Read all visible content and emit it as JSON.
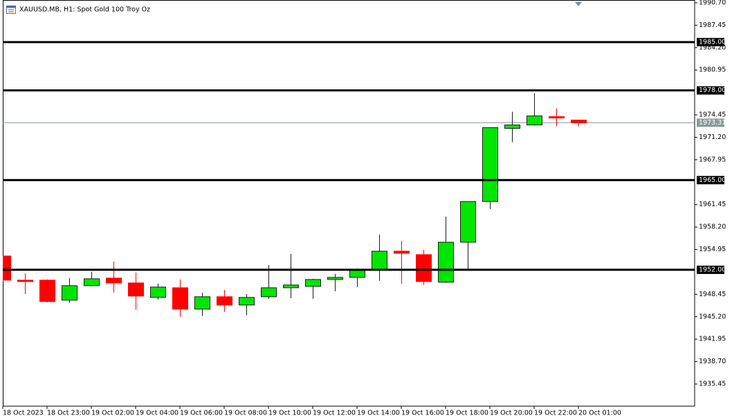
{
  "chart_data": {
    "type": "candlestick",
    "title": "XAUUSD.MB, H1:  Spot Gold 100 Troy Oz",
    "categories": [
      "18 Oct 2023",
      null,
      "18 Oct 23:00",
      null,
      "19 Oct 02:00",
      null,
      "19 Oct 04:00",
      null,
      "19 Oct 06:00",
      null,
      "19 Oct 08:00",
      null,
      "19 Oct 10:00",
      null,
      "19 Oct 12:00",
      null,
      "19 Oct 14:00",
      null,
      "19 Oct 16:00",
      null,
      "19 Oct 18:00",
      null,
      "19 Oct 20:00",
      null,
      "19 Oct 22:00",
      null,
      "20 Oct 01:00"
    ],
    "open": [
      1954.0,
      1950.5,
      1950.5,
      1947.6,
      1949.7,
      1950.8,
      1950.1,
      1948.0,
      1949.4,
      1946.3,
      1948.1,
      1946.9,
      1948.1,
      1949.4,
      1949.6,
      1950.6,
      1950.9,
      1952.0,
      1954.7,
      1954.2,
      1950.2,
      1956.0,
      1961.9,
      1972.5,
      1973.0,
      1974.2,
      1973.7
    ],
    "high": [
      1954.0,
      1951.5,
      1950.6,
      1950.8,
      1951.7,
      1953.2,
      1951.6,
      1950.0,
      1950.6,
      1948.7,
      1949.1,
      1948.5,
      1952.7,
      1954.3,
      1950.7,
      1951.4,
      1952.2,
      1957.1,
      1956.2,
      1954.9,
      1959.7,
      1961.9,
      1972.6,
      1974.9,
      1977.6,
      1975.4,
      1973.7
    ],
    "low": [
      1950.3,
      1948.5,
      1947.3,
      1947.2,
      1949.6,
      1948.7,
      1946.2,
      1947.7,
      1945.2,
      1945.3,
      1945.9,
      1945.4,
      1947.8,
      1947.9,
      1947.8,
      1948.9,
      1949.5,
      1950.4,
      1950.0,
      1949.8,
      1950.1,
      1952.1,
      1960.8,
      1970.5,
      1972.9,
      1972.8,
      1972.8
    ],
    "close": [
      1950.5,
      1950.3,
      1947.4,
      1949.7,
      1950.7,
      1950.1,
      1948.2,
      1949.5,
      1946.3,
      1948.1,
      1946.9,
      1948.0,
      1949.4,
      1949.8,
      1950.6,
      1950.9,
      1952.0,
      1954.7,
      1954.4,
      1950.3,
      1956.0,
      1961.9,
      1972.6,
      1973.0,
      1974.3,
      1974.0,
      1973.31
    ],
    "up_color": "#00e600",
    "down_color": "#ff0000",
    "ylim": [
      1932.24,
      1991.1
    ],
    "yticks": [
      {
        "value": 1990.7,
        "label": "1990.70"
      },
      {
        "value": 1987.45,
        "label": "1987.45"
      },
      {
        "value": 1984.2,
        "label": "1984.20"
      },
      {
        "value": 1980.95,
        "label": "1980.95"
      },
      {
        "value": 1974.45,
        "label": "1974.45"
      },
      {
        "value": 1971.2,
        "label": "1971.20"
      },
      {
        "value": 1967.95,
        "label": "1967.95"
      },
      {
        "value": 1961.45,
        "label": "1961.45"
      },
      {
        "value": 1958.2,
        "label": "1958.20"
      },
      {
        "value": 1954.95,
        "label": "1954.95"
      },
      {
        "value": 1948.45,
        "label": "1948.45"
      },
      {
        "value": 1945.2,
        "label": "1945.20"
      },
      {
        "value": 1941.95,
        "label": "1941.95"
      },
      {
        "value": 1938.7,
        "label": "1938.70"
      },
      {
        "value": 1935.45,
        "label": "1935.45"
      }
    ],
    "levels": [
      {
        "value": 1985,
        "label": "1985.00"
      },
      {
        "value": 1978,
        "label": "1978.00"
      },
      {
        "value": 1965,
        "label": "1965.00"
      },
      {
        "value": 1952,
        "label": "1952.00"
      }
    ],
    "current_price": 1973.31
  }
}
